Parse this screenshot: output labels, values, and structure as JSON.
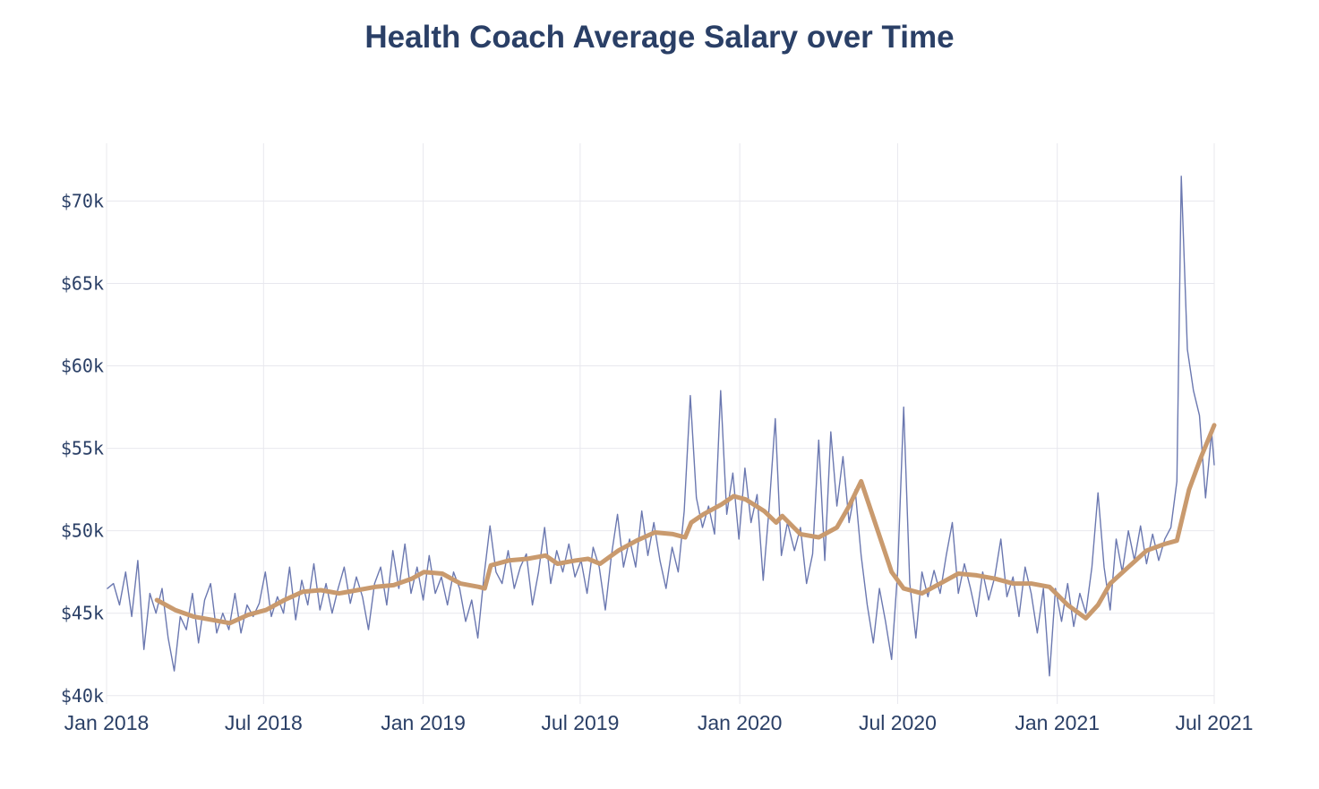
{
  "chart_data": {
    "type": "line",
    "title": "Health Coach Average Salary over Time",
    "xlabel": "",
    "ylabel": "",
    "x_range": [
      "2018-01-01",
      "2021-07-01"
    ],
    "ylim": [
      39500,
      73500
    ],
    "y_ticks": [
      {
        "value": 40000,
        "label": "$40k"
      },
      {
        "value": 45000,
        "label": "$45k"
      },
      {
        "value": 50000,
        "label": "$50k"
      },
      {
        "value": 55000,
        "label": "$55k"
      },
      {
        "value": 60000,
        "label": "$60k"
      },
      {
        "value": 65000,
        "label": "$65k"
      },
      {
        "value": 70000,
        "label": "$70k"
      }
    ],
    "x_ticks": [
      {
        "date": "2018-01-01",
        "label": "Jan 2018"
      },
      {
        "date": "2018-07-01",
        "label": "Jul 2018"
      },
      {
        "date": "2019-01-01",
        "label": "Jan 2019"
      },
      {
        "date": "2019-07-01",
        "label": "Jul 2019"
      },
      {
        "date": "2020-01-01",
        "label": "Jan 2020"
      },
      {
        "date": "2020-07-01",
        "label": "Jul 2020"
      },
      {
        "date": "2021-01-01",
        "label": "Jan 2021"
      },
      {
        "date": "2021-07-01",
        "label": "Jul 2021"
      }
    ],
    "grid": true,
    "legend": "none",
    "series": [
      {
        "color": "#6b78b0",
        "points": [
          [
            "2018-01-02",
            46500
          ],
          [
            "2018-01-09",
            46800
          ],
          [
            "2018-01-16",
            45500
          ],
          [
            "2018-01-23",
            47500
          ],
          [
            "2018-01-30",
            44800
          ],
          [
            "2018-02-06",
            48200
          ],
          [
            "2018-02-13",
            42800
          ],
          [
            "2018-02-20",
            46200
          ],
          [
            "2018-02-27",
            45000
          ],
          [
            "2018-03-06",
            46500
          ],
          [
            "2018-03-13",
            43500
          ],
          [
            "2018-03-20",
            41500
          ],
          [
            "2018-03-27",
            44800
          ],
          [
            "2018-04-03",
            44000
          ],
          [
            "2018-04-10",
            46200
          ],
          [
            "2018-04-17",
            43200
          ],
          [
            "2018-04-24",
            45800
          ],
          [
            "2018-05-01",
            46800
          ],
          [
            "2018-05-08",
            43800
          ],
          [
            "2018-05-15",
            45000
          ],
          [
            "2018-05-22",
            44000
          ],
          [
            "2018-05-29",
            46200
          ],
          [
            "2018-06-05",
            43800
          ],
          [
            "2018-06-12",
            45500
          ],
          [
            "2018-06-19",
            44800
          ],
          [
            "2018-06-26",
            45600
          ],
          [
            "2018-07-03",
            47500
          ],
          [
            "2018-07-10",
            44800
          ],
          [
            "2018-07-17",
            46000
          ],
          [
            "2018-07-24",
            45000
          ],
          [
            "2018-07-31",
            47800
          ],
          [
            "2018-08-07",
            44600
          ],
          [
            "2018-08-14",
            47000
          ],
          [
            "2018-08-21",
            45500
          ],
          [
            "2018-08-28",
            48000
          ],
          [
            "2018-09-04",
            45200
          ],
          [
            "2018-09-11",
            46800
          ],
          [
            "2018-09-18",
            45000
          ],
          [
            "2018-09-25",
            46500
          ],
          [
            "2018-10-02",
            47800
          ],
          [
            "2018-10-09",
            45600
          ],
          [
            "2018-10-16",
            47200
          ],
          [
            "2018-10-23",
            46000
          ],
          [
            "2018-10-30",
            44000
          ],
          [
            "2018-11-06",
            46800
          ],
          [
            "2018-11-13",
            47800
          ],
          [
            "2018-11-20",
            45500
          ],
          [
            "2018-11-27",
            48800
          ],
          [
            "2018-12-04",
            46500
          ],
          [
            "2018-12-11",
            49200
          ],
          [
            "2018-12-18",
            46200
          ],
          [
            "2018-12-25",
            47800
          ],
          [
            "2019-01-01",
            45800
          ],
          [
            "2019-01-08",
            48500
          ],
          [
            "2019-01-15",
            46200
          ],
          [
            "2019-01-22",
            47200
          ],
          [
            "2019-01-29",
            45500
          ],
          [
            "2019-02-05",
            47500
          ],
          [
            "2019-02-12",
            46500
          ],
          [
            "2019-02-19",
            44500
          ],
          [
            "2019-02-26",
            45800
          ],
          [
            "2019-03-05",
            43500
          ],
          [
            "2019-03-12",
            47200
          ],
          [
            "2019-03-19",
            50300
          ],
          [
            "2019-03-26",
            47500
          ],
          [
            "2019-04-02",
            46800
          ],
          [
            "2019-04-09",
            48800
          ],
          [
            "2019-04-16",
            46500
          ],
          [
            "2019-04-23",
            47800
          ],
          [
            "2019-04-30",
            48600
          ],
          [
            "2019-05-07",
            45500
          ],
          [
            "2019-05-14",
            47500
          ],
          [
            "2019-05-21",
            50200
          ],
          [
            "2019-05-28",
            46800
          ],
          [
            "2019-06-04",
            48800
          ],
          [
            "2019-06-11",
            47500
          ],
          [
            "2019-06-18",
            49200
          ],
          [
            "2019-06-25",
            47200
          ],
          [
            "2019-07-02",
            48200
          ],
          [
            "2019-07-09",
            46200
          ],
          [
            "2019-07-16",
            49000
          ],
          [
            "2019-07-23",
            47800
          ],
          [
            "2019-07-30",
            45200
          ],
          [
            "2019-08-06",
            48500
          ],
          [
            "2019-08-13",
            51000
          ],
          [
            "2019-08-20",
            47800
          ],
          [
            "2019-08-27",
            49500
          ],
          [
            "2019-09-03",
            47800
          ],
          [
            "2019-09-10",
            51200
          ],
          [
            "2019-09-17",
            48500
          ],
          [
            "2019-09-24",
            50500
          ],
          [
            "2019-10-01",
            48200
          ],
          [
            "2019-10-08",
            46500
          ],
          [
            "2019-10-15",
            49000
          ],
          [
            "2019-10-22",
            47500
          ],
          [
            "2019-10-29",
            51200
          ],
          [
            "2019-11-05",
            58200
          ],
          [
            "2019-11-12",
            52000
          ],
          [
            "2019-11-19",
            50200
          ],
          [
            "2019-11-26",
            51500
          ],
          [
            "2019-12-03",
            49800
          ],
          [
            "2019-12-10",
            58500
          ],
          [
            "2019-12-17",
            51000
          ],
          [
            "2019-12-24",
            53500
          ],
          [
            "2019-12-31",
            49500
          ],
          [
            "2020-01-07",
            53800
          ],
          [
            "2020-01-14",
            50500
          ],
          [
            "2020-01-21",
            52200
          ],
          [
            "2020-01-28",
            47000
          ],
          [
            "2020-02-04",
            51500
          ],
          [
            "2020-02-11",
            56800
          ],
          [
            "2020-02-18",
            48500
          ],
          [
            "2020-02-25",
            50500
          ],
          [
            "2020-03-04",
            48800
          ],
          [
            "2020-03-11",
            50200
          ],
          [
            "2020-03-18",
            46800
          ],
          [
            "2020-03-25",
            48600
          ],
          [
            "2020-04-01",
            55500
          ],
          [
            "2020-04-08",
            48200
          ],
          [
            "2020-04-15",
            56000
          ],
          [
            "2020-04-22",
            51500
          ],
          [
            "2020-04-29",
            54500
          ],
          [
            "2020-05-06",
            50500
          ],
          [
            "2020-05-13",
            52500
          ],
          [
            "2020-05-20",
            48500
          ],
          [
            "2020-05-27",
            45500
          ],
          [
            "2020-06-03",
            43200
          ],
          [
            "2020-06-10",
            46500
          ],
          [
            "2020-06-17",
            44500
          ],
          [
            "2020-06-24",
            42200
          ],
          [
            "2020-07-01",
            47500
          ],
          [
            "2020-07-08",
            57500
          ],
          [
            "2020-07-15",
            46800
          ],
          [
            "2020-07-22",
            43500
          ],
          [
            "2020-07-29",
            47500
          ],
          [
            "2020-08-05",
            46000
          ],
          [
            "2020-08-12",
            47600
          ],
          [
            "2020-08-19",
            46200
          ],
          [
            "2020-08-26",
            48500
          ],
          [
            "2020-09-02",
            50500
          ],
          [
            "2020-09-09",
            46200
          ],
          [
            "2020-09-16",
            48000
          ],
          [
            "2020-09-23",
            46500
          ],
          [
            "2020-09-30",
            44800
          ],
          [
            "2020-10-07",
            47500
          ],
          [
            "2020-10-14",
            45800
          ],
          [
            "2020-10-21",
            47200
          ],
          [
            "2020-10-28",
            49500
          ],
          [
            "2020-11-04",
            46000
          ],
          [
            "2020-11-11",
            47200
          ],
          [
            "2020-11-18",
            44800
          ],
          [
            "2020-11-25",
            47800
          ],
          [
            "2020-12-02",
            46200
          ],
          [
            "2020-12-09",
            43800
          ],
          [
            "2020-12-16",
            46500
          ],
          [
            "2020-12-23",
            41200
          ],
          [
            "2020-12-30",
            46500
          ],
          [
            "2021-01-06",
            44500
          ],
          [
            "2021-01-13",
            46800
          ],
          [
            "2021-01-20",
            44200
          ],
          [
            "2021-01-27",
            46200
          ],
          [
            "2021-02-03",
            45000
          ],
          [
            "2021-02-10",
            47800
          ],
          [
            "2021-02-17",
            52300
          ],
          [
            "2021-02-24",
            47800
          ],
          [
            "2021-03-03",
            45200
          ],
          [
            "2021-03-10",
            49500
          ],
          [
            "2021-03-17",
            47500
          ],
          [
            "2021-03-24",
            50000
          ],
          [
            "2021-03-31",
            48200
          ],
          [
            "2021-04-07",
            50300
          ],
          [
            "2021-04-14",
            48000
          ],
          [
            "2021-04-21",
            49800
          ],
          [
            "2021-04-28",
            48200
          ],
          [
            "2021-05-05",
            49500
          ],
          [
            "2021-05-12",
            50200
          ],
          [
            "2021-05-19",
            53000
          ],
          [
            "2021-05-24",
            71500
          ],
          [
            "2021-05-31",
            61000
          ],
          [
            "2021-06-07",
            58500
          ],
          [
            "2021-06-14",
            57000
          ],
          [
            "2021-06-21",
            52000
          ],
          [
            "2021-06-28",
            56000
          ],
          [
            "2021-07-01",
            54000
          ]
        ]
      },
      {
        "color": "#c99a6e",
        "points": [
          [
            "2018-02-28",
            45800
          ],
          [
            "2018-03-21",
            45200
          ],
          [
            "2018-04-11",
            44800
          ],
          [
            "2018-05-02",
            44600
          ],
          [
            "2018-05-23",
            44400
          ],
          [
            "2018-06-13",
            44900
          ],
          [
            "2018-07-04",
            45200
          ],
          [
            "2018-07-25",
            45800
          ],
          [
            "2018-08-15",
            46300
          ],
          [
            "2018-09-05",
            46400
          ],
          [
            "2018-09-26",
            46200
          ],
          [
            "2018-10-17",
            46400
          ],
          [
            "2018-11-07",
            46600
          ],
          [
            "2018-11-28",
            46700
          ],
          [
            "2018-12-19",
            47100
          ],
          [
            "2019-01-02",
            47500
          ],
          [
            "2019-01-23",
            47400
          ],
          [
            "2019-02-13",
            46800
          ],
          [
            "2019-03-06",
            46600
          ],
          [
            "2019-03-13",
            46500
          ],
          [
            "2019-03-20",
            47900
          ],
          [
            "2019-04-10",
            48200
          ],
          [
            "2019-05-01",
            48300
          ],
          [
            "2019-05-22",
            48500
          ],
          [
            "2019-06-05",
            48000
          ],
          [
            "2019-06-26",
            48200
          ],
          [
            "2019-07-10",
            48300
          ],
          [
            "2019-07-24",
            48000
          ],
          [
            "2019-08-14",
            48800
          ],
          [
            "2019-09-04",
            49400
          ],
          [
            "2019-09-25",
            49900
          ],
          [
            "2019-10-16",
            49800
          ],
          [
            "2019-10-30",
            49600
          ],
          [
            "2019-11-06",
            50500
          ],
          [
            "2019-11-20",
            51000
          ],
          [
            "2019-12-11",
            51600
          ],
          [
            "2019-12-25",
            52100
          ],
          [
            "2020-01-08",
            51900
          ],
          [
            "2020-01-29",
            51200
          ],
          [
            "2020-02-12",
            50500
          ],
          [
            "2020-02-19",
            50900
          ],
          [
            "2020-03-11",
            49800
          ],
          [
            "2020-04-01",
            49600
          ],
          [
            "2020-04-22",
            50200
          ],
          [
            "2020-05-06",
            51500
          ],
          [
            "2020-05-20",
            53000
          ],
          [
            "2020-06-03",
            50800
          ],
          [
            "2020-06-24",
            47500
          ],
          [
            "2020-07-08",
            46500
          ],
          [
            "2020-07-29",
            46200
          ],
          [
            "2020-08-19",
            46800
          ],
          [
            "2020-09-09",
            47400
          ],
          [
            "2020-09-30",
            47300
          ],
          [
            "2020-10-21",
            47100
          ],
          [
            "2020-11-11",
            46800
          ],
          [
            "2020-12-02",
            46800
          ],
          [
            "2020-12-23",
            46600
          ],
          [
            "2021-01-13",
            45500
          ],
          [
            "2021-02-03",
            44700
          ],
          [
            "2021-02-17",
            45500
          ],
          [
            "2021-03-03",
            46800
          ],
          [
            "2021-03-24",
            47800
          ],
          [
            "2021-04-14",
            48800
          ],
          [
            "2021-05-05",
            49200
          ],
          [
            "2021-05-19",
            49400
          ],
          [
            "2021-06-02",
            52500
          ],
          [
            "2021-06-16",
            54500
          ],
          [
            "2021-07-01",
            56400
          ]
        ]
      }
    ]
  }
}
